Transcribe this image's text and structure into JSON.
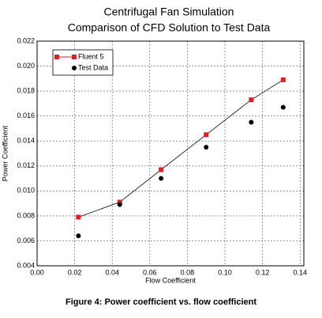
{
  "chart_data": {
    "type": "line",
    "title": "Centrifugal Fan Simulation",
    "subtitle": "Comparison of CFD Solution to Test Data",
    "xlabel": "Flow Coefficient",
    "ylabel": "Power Coefficient",
    "caption": "Figure 4:  Power coefficient vs. flow coefficient",
    "x": [
      0.022,
      0.044,
      0.066,
      0.09,
      0.114,
      0.131
    ],
    "series": [
      {
        "name": "Fluent 5",
        "color": "#e02020",
        "line_color": "#000000",
        "marker": "square",
        "line": true,
        "values": [
          0.0079,
          0.0091,
          0.0117,
          0.0145,
          0.0173,
          0.0189
        ]
      },
      {
        "name": "Test Data",
        "color": "#000000",
        "marker": "circle",
        "line": false,
        "values": [
          0.0064,
          0.0089,
          0.011,
          0.0135,
          0.0155,
          0.0167
        ]
      }
    ],
    "xlim": [
      0,
      0.142
    ],
    "ylim": [
      0.004,
      0.022
    ],
    "xticks": [
      {
        "value": 0,
        "label": "0.00"
      },
      {
        "value": 0.02,
        "label": "0.02"
      },
      {
        "value": 0.04,
        "label": "0.04"
      },
      {
        "value": 0.06,
        "label": "0.06"
      },
      {
        "value": 0.08,
        "label": "0.08"
      },
      {
        "value": 0.1,
        "label": "0.10"
      },
      {
        "value": 0.12,
        "label": "0.12"
      },
      {
        "value": 0.14,
        "label": "0.14"
      }
    ],
    "yticks": [
      {
        "value": 0.004,
        "label": "0.004"
      },
      {
        "value": 0.006,
        "label": "0.006"
      },
      {
        "value": 0.008,
        "label": "0.008"
      },
      {
        "value": 0.01,
        "label": "0.010"
      },
      {
        "value": 0.012,
        "label": "0.012"
      },
      {
        "value": 0.014,
        "label": "0.014"
      },
      {
        "value": 0.016,
        "label": "0.016"
      },
      {
        "value": 0.018,
        "label": "0.018"
      },
      {
        "value": 0.02,
        "label": "0.020"
      },
      {
        "value": 0.022,
        "label": "0.022"
      }
    ],
    "grid": true,
    "legend": "upper-left"
  }
}
